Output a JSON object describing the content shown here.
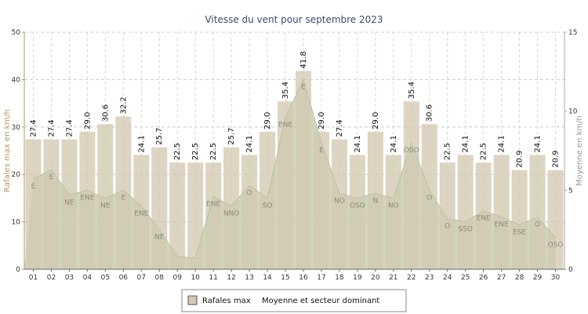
{
  "chart_data": {
    "type": "bar",
    "title": "Vitesse du vent pour septembre 2023",
    "ylabel": "Rafales max en km/h",
    "y2label": "Moyenne en km/h",
    "ylim": [
      0,
      50
    ],
    "y2lim": [
      0,
      15
    ],
    "yticks": [
      0,
      10,
      20,
      30,
      40,
      50
    ],
    "y2ticks": [
      0,
      5,
      10,
      15
    ],
    "grid": true,
    "legend_position": "bottom",
    "categories": [
      "01",
      "02",
      "03",
      "04",
      "05",
      "06",
      "07",
      "08",
      "09",
      "10",
      "11",
      "12",
      "13",
      "14",
      "15",
      "16",
      "17",
      "18",
      "19",
      "20",
      "21",
      "22",
      "23",
      "24",
      "25",
      "26",
      "27",
      "28",
      "29",
      "30"
    ],
    "series": [
      {
        "name": "Rafales max",
        "type": "bar",
        "axis": "left",
        "color": "#d5c9b3",
        "values": [
          27.4,
          27.4,
          27.4,
          29.0,
          30.6,
          32.2,
          24.1,
          25.7,
          22.5,
          22.5,
          22.5,
          25.7,
          24.1,
          29.0,
          35.4,
          41.8,
          29.0,
          27.4,
          24.1,
          29.0,
          24.1,
          35.4,
          30.6,
          22.5,
          24.1,
          22.5,
          24.1,
          20.9,
          24.1,
          20.9
        ],
        "labels": [
          "27.4",
          "27.4",
          "27.4",
          "29.0",
          "30.6",
          "32.2",
          "24.1",
          "25.7",
          "22.5",
          "22.5",
          "22.5",
          "25.7",
          "24.1",
          "29.0",
          "35.4",
          "41.8",
          "29.0",
          "27.4",
          "24.1",
          "29.0",
          "24.1",
          "35.4",
          "30.6",
          "22.5",
          "24.1",
          "22.5",
          "24.1",
          "20.9",
          "24.1",
          "20.9"
        ]
      },
      {
        "name": "Moyenne et secteur dominant",
        "type": "area",
        "axis": "right",
        "color": "#c6d0b0",
        "values": [
          5.7,
          6.3,
          4.7,
          5.0,
          4.5,
          5.0,
          4.0,
          2.5,
          0.8,
          0.7,
          4.6,
          4.0,
          5.3,
          4.5,
          9.6,
          12.0,
          8.0,
          4.8,
          4.5,
          4.8,
          4.5,
          8.0,
          5.0,
          3.2,
          3.0,
          3.7,
          3.3,
          2.8,
          3.3,
          2.0
        ],
        "directions": [
          "E",
          "E",
          "NE",
          "ENE",
          "NE",
          "E",
          "ENE",
          "NE",
          "",
          "",
          "ENE",
          "NNO",
          "O",
          "SO",
          "ENE",
          "E",
          "E",
          "NO",
          "OSO",
          "N",
          "NO",
          "OSO",
          "O",
          "O",
          "SSO",
          "ENE",
          "ENE",
          "ESE",
          "O",
          "OSO"
        ]
      }
    ]
  }
}
